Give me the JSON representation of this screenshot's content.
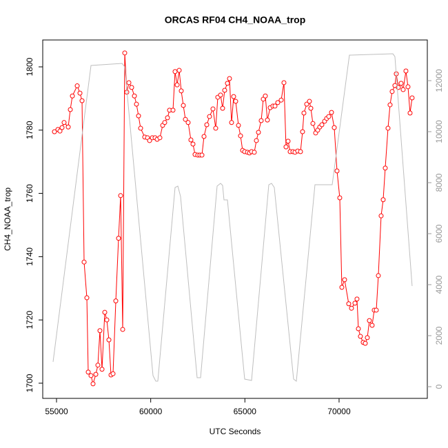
{
  "chart_data": {
    "type": "line",
    "title": "ORCAS RF04 CH4_NOAA_trop",
    "xlabel": "UTC Seconds",
    "ylabel": "CH4_NOAA_trop",
    "xlim": [
      54268,
      74685
    ],
    "xticks": [
      55000,
      60000,
      65000,
      70000
    ],
    "ylim": [
      1695.2,
      1808.5
    ],
    "yticks": [
      1700,
      1720,
      1740,
      1760,
      1780,
      1800
    ],
    "y2lim": [
      -459,
      13595
    ],
    "y2ticks": [
      0,
      2000,
      4000,
      6000,
      8000,
      10000,
      12000
    ],
    "series": [
      {
        "color": "#ff0000",
        "markers": true,
        "x": [
          54890,
          55073,
          55183,
          55293,
          55402,
          55622,
          55732,
          55842,
          56098,
          56244,
          56354,
          56464,
          56610,
          56683,
          56830,
          56939,
          57086,
          57195,
          57305,
          57415,
          57561,
          57671,
          57781,
          57891,
          58000,
          58147,
          58293,
          58403,
          58513,
          58622,
          58732,
          58842,
          58988,
          59135,
          59244,
          59354,
          59464,
          59683,
          59830,
          59940,
          60086,
          60232,
          60342,
          60488,
          60635,
          60744,
          60891,
          61000,
          61183,
          61293,
          61403,
          61512,
          61622,
          61732,
          61842,
          61988,
          62134,
          62244,
          62354,
          62500,
          62610,
          62720,
          62830,
          62976,
          63122,
          63305,
          63451,
          63561,
          63708,
          63817,
          63927,
          64073,
          64183,
          64293,
          64403,
          64512,
          64659,
          64769,
          64878,
          64988,
          65135,
          65244,
          65354,
          65500,
          65610,
          65720,
          65866,
          65976,
          66085,
          66195,
          66342,
          66488,
          66598,
          66744,
          66927,
          67073,
          67183,
          67293,
          67403,
          67549,
          67659,
          67805,
          67952,
          68061,
          68134,
          68281,
          68427,
          68500,
          68610,
          68757,
          68866,
          68976,
          69086,
          69232,
          69342,
          69452,
          69598,
          69745,
          69891,
          70037,
          70147,
          70293,
          70512,
          70659,
          70842,
          70951,
          71025,
          71134,
          71281,
          71391,
          71500,
          71610,
          71756,
          71866,
          71976,
          72085,
          72232,
          72342,
          72451,
          72598,
          72707,
          72817,
          72964,
          73037,
          73147,
          73293,
          73403,
          73549,
          73659,
          73769,
          73878
        ],
        "values": [
          1779.5,
          1780.2,
          1779.7,
          1780.8,
          1782.4,
          1781,
          1786.5,
          1790.8,
          1794,
          1791.7,
          1789.3,
          1738.3,
          1727,
          1703.5,
          1702.4,
          1699.8,
          1702.8,
          1705.7,
          1716.6,
          1704.4,
          1722.4,
          1720,
          1713.7,
          1702.6,
          1703,
          1726,
          1745.8,
          1759.3,
          1717,
          1804.4,
          1792,
          1795,
          1793.5,
          1790.8,
          1788.2,
          1784.5,
          1780.6,
          1777.8,
          1777.6,
          1776.7,
          1777.6,
          1777.6,
          1777.1,
          1777.6,
          1781.5,
          1782.4,
          1783.9,
          1786.3,
          1786.3,
          1798.5,
          1794.3,
          1798.9,
          1792.4,
          1787.8,
          1783.4,
          1782.4,
          1776.9,
          1775.6,
          1772.3,
          1772.1,
          1772.1,
          1772.1,
          1778,
          1781.7,
          1784.3,
          1786.7,
          1780.6,
          1790.4,
          1791.1,
          1786.9,
          1792.6,
          1794.8,
          1796.3,
          1782.4,
          1790.6,
          1789.1,
          1781.5,
          1778.2,
          1773.6,
          1773.2,
          1773,
          1772.8,
          1773.2,
          1773,
          1776.7,
          1779.3,
          1783,
          1789.8,
          1790.8,
          1783.2,
          1787.1,
          1787.6,
          1787.6,
          1788.7,
          1789.5,
          1795,
          1774.7,
          1776.5,
          1773.2,
          1773.2,
          1773,
          1773.4,
          1773.2,
          1779.5,
          1785.4,
          1788.2,
          1789.1,
          1786.9,
          1782.1,
          1779.1,
          1780,
          1781,
          1781.7,
          1782.8,
          1783.7,
          1784.3,
          1785.6,
          1780.8,
          1767.1,
          1758.6,
          1730.3,
          1732.7,
          1725.1,
          1723.7,
          1725.3,
          1726.6,
          1717.2,
          1714.8,
          1712.9,
          1712.6,
          1714.4,
          1719.8,
          1718.3,
          1723.1,
          1723.1,
          1734,
          1752.9,
          1758,
          1768,
          1780.6,
          1788,
          1792.2,
          1794.1,
          1797.8,
          1793.5,
          1794.8,
          1792.8,
          1798.7,
          1793.7,
          1785.4,
          1790.2
        ]
      },
      {
        "color": "#bebebe",
        "axis": "y2",
        "markers": false,
        "x": [
          54817,
          56830,
          58476,
          58622,
          60122,
          60269,
          60378,
          61293,
          61439,
          61585,
          62464,
          62647,
          63525,
          63708,
          63817,
          63890,
          64073,
          64988,
          65354,
          66269,
          66415,
          66561,
          67585,
          67732,
          68720,
          69635,
          70549,
          72854,
          72964,
          73878
        ],
        "values": [
          973,
          12595,
          12676,
          12541,
          432,
          216,
          216,
          7811,
          7865,
          7459,
          351,
          351,
          7865,
          7973,
          7892,
          7324,
          7324,
          297,
          243,
          7919,
          7973,
          7811,
          297,
          216,
          7919,
          7919,
          13000,
          13054,
          12946,
          3946
        ]
      }
    ]
  }
}
